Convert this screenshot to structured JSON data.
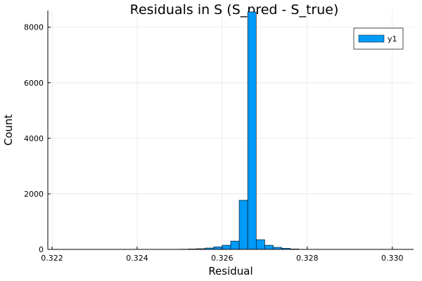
{
  "chart_data": {
    "type": "bar",
    "title": "Residuals in S (S_pred - S_true)",
    "xlabel": "Residual",
    "ylabel": "Count",
    "xlim": [
      0.3219,
      0.3305
    ],
    "ylim": [
      0,
      8600
    ],
    "xticks": [
      0.322,
      0.324,
      0.326,
      0.328,
      0.33
    ],
    "xtick_labels": [
      "0.322",
      "0.324",
      "0.326",
      "0.328",
      "0.330"
    ],
    "yticks": [
      0,
      2000,
      4000,
      6000,
      8000
    ],
    "ytick_labels": [
      "0",
      "2000",
      "4000",
      "6000",
      "8000"
    ],
    "grid": true,
    "legend_position": "top-right",
    "bin_width": 0.0002,
    "series": [
      {
        "name": "y1",
        "color": "#009AF9",
        "bins": [
          {
            "x0": 0.3248,
            "x1": 0.325,
            "value": 3
          },
          {
            "x0": 0.325,
            "x1": 0.3252,
            "value": 8
          },
          {
            "x0": 0.3252,
            "x1": 0.3254,
            "value": 15
          },
          {
            "x0": 0.3254,
            "x1": 0.3256,
            "value": 25
          },
          {
            "x0": 0.3256,
            "x1": 0.3258,
            "value": 50
          },
          {
            "x0": 0.3258,
            "x1": 0.326,
            "value": 90
          },
          {
            "x0": 0.326,
            "x1": 0.3262,
            "value": 150
          },
          {
            "x0": 0.3262,
            "x1": 0.3264,
            "value": 300
          },
          {
            "x0": 0.3264,
            "x1": 0.3266,
            "value": 1770
          },
          {
            "x0": 0.3266,
            "x1": 0.3268,
            "value": 8550
          },
          {
            "x0": 0.3268,
            "x1": 0.327,
            "value": 350
          },
          {
            "x0": 0.327,
            "x1": 0.3272,
            "value": 150
          },
          {
            "x0": 0.3272,
            "x1": 0.3274,
            "value": 75
          },
          {
            "x0": 0.3274,
            "x1": 0.3276,
            "value": 40
          },
          {
            "x0": 0.3276,
            "x1": 0.3278,
            "value": 15
          },
          {
            "x0": 0.3278,
            "x1": 0.328,
            "value": 5
          },
          {
            "x0": 0.328,
            "x1": 0.3282,
            "value": 2
          }
        ]
      }
    ]
  }
}
